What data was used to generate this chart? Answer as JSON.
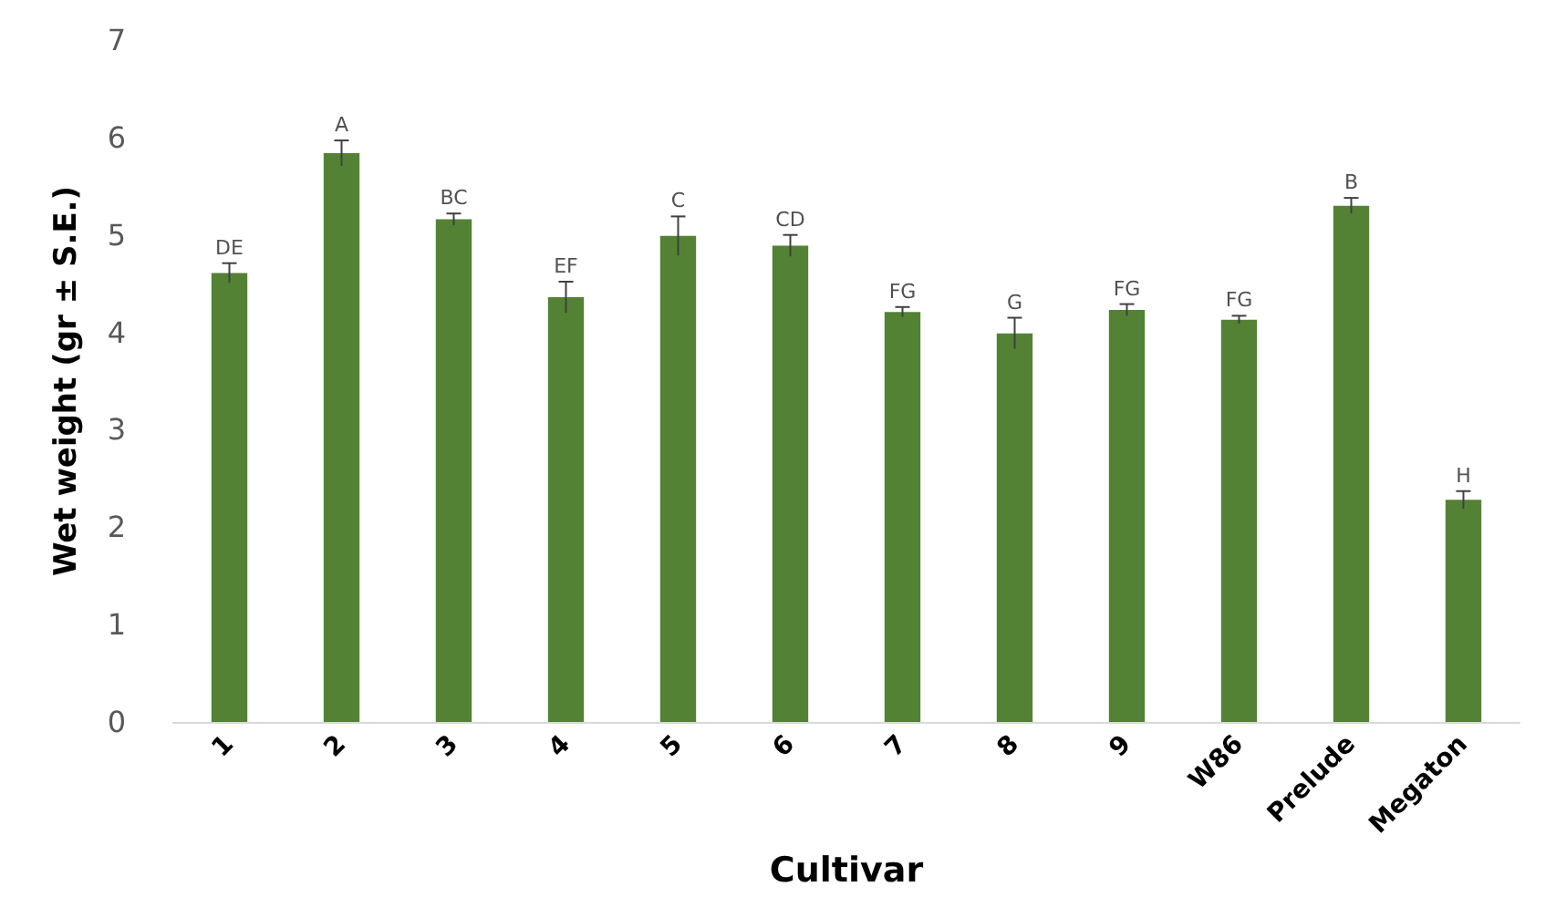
{
  "chart_data": {
    "type": "bar",
    "xlabel": "Cultivar",
    "ylabel": "Wet weight (gr ± S.E.)",
    "categories": [
      "1",
      "2",
      "3",
      "4",
      "5",
      "6",
      "7",
      "8",
      "9",
      "W86",
      "Prelude",
      "Megaton"
    ],
    "values": [
      4.61,
      5.84,
      5.16,
      4.36,
      4.99,
      4.89,
      4.21,
      3.99,
      4.23,
      4.13,
      5.3,
      2.28
    ],
    "errors": [
      0.1,
      0.13,
      0.06,
      0.16,
      0.2,
      0.11,
      0.05,
      0.16,
      0.06,
      0.04,
      0.08,
      0.09
    ],
    "color": "#548235",
    "ylim": [
      0,
      7
    ],
    "yticks": [
      0,
      1,
      2,
      3,
      4,
      5,
      6,
      7
    ],
    "grid": false,
    "annotations": [
      {
        "text": "DE",
        "x": "1",
        "y": 4.71
      },
      {
        "text": "A",
        "x": "2",
        "y": 5.97
      },
      {
        "text": "BC",
        "x": "3",
        "y": 5.22
      },
      {
        "text": "EF",
        "x": "4",
        "y": 4.52
      },
      {
        "text": "C",
        "x": "5",
        "y": 5.19
      },
      {
        "text": "CD",
        "x": "6",
        "y": 5.0
      },
      {
        "text": "FG",
        "x": "7",
        "y": 4.26
      },
      {
        "text": "G",
        "x": "8",
        "y": 4.15
      },
      {
        "text": "FG",
        "x": "9",
        "y": 4.29
      },
      {
        "text": "FG",
        "x": "W86",
        "y": 4.17
      },
      {
        "text": "B",
        "x": "Prelude",
        "y": 5.38
      },
      {
        "text": "H",
        "x": "Megaton",
        "y": 2.37
      }
    ]
  }
}
